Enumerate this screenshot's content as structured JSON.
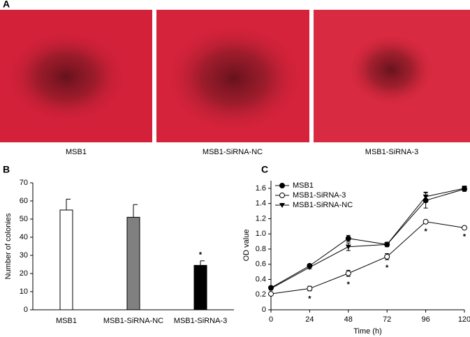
{
  "figure": {
    "panel_labels": [
      "A",
      "B",
      "C"
    ],
    "images": [
      {
        "caption": "MSB1"
      },
      {
        "caption": "MSB1-SiRNA-NC"
      },
      {
        "caption": "MSB1-SiRNA-3"
      }
    ]
  },
  "chart_data": [
    {
      "type": "bar",
      "y_label": "Number of colonies",
      "categories": [
        "MSB1",
        "MSB1-SiRNA-NC",
        "MSB1-SiRNA-3"
      ],
      "values": [
        55,
        51,
        24.5
      ],
      "errors": [
        6,
        7,
        2.5
      ],
      "colors": [
        "#ffffff",
        "#808080",
        "#000000"
      ],
      "ylim": [
        0,
        70
      ],
      "yticks": [
        0,
        10,
        20,
        30,
        40,
        50,
        60,
        70
      ],
      "annotations": [
        {
          "text": "*",
          "x": 2
        }
      ]
    },
    {
      "type": "line",
      "x_label": "Time (h)",
      "y_label": "OD value",
      "x": [
        0,
        24,
        48,
        72,
        96,
        120
      ],
      "xlim": [
        0,
        120
      ],
      "xticks": [
        0,
        24,
        48,
        72,
        96,
        120
      ],
      "ylim": [
        0,
        1.7
      ],
      "yticks": [
        0,
        0.2,
        0.4,
        0.6,
        0.8,
        {
          "value": 1,
          "label": "1.0"
        },
        1.2,
        1.4,
        1.6
      ],
      "legend": "top-left",
      "series": [
        {
          "name": "MSB1",
          "color": "#000000",
          "marker": "filled-circle",
          "values": [
            0.29,
            0.58,
            0.94,
            0.86,
            1.44,
            1.59
          ],
          "errors": [
            0.02,
            0.02,
            0.04,
            0.03,
            0.1,
            0.03
          ]
        },
        {
          "name": "MSB1-SiRNA-3",
          "color": "#000000",
          "marker": "open-circle",
          "values": [
            0.21,
            0.28,
            0.48,
            0.7,
            1.16,
            1.08
          ],
          "errors": [
            0.02,
            0.03,
            0.04,
            0.04,
            0.02,
            0.01
          ]
        },
        {
          "name": "MSB1-SiRNA-NC",
          "color": "#000000",
          "marker": "triangle-down",
          "values": [
            0.28,
            0.56,
            0.83,
            0.86,
            1.49,
            1.6
          ],
          "errors": [
            0.02,
            0.02,
            0.05,
            0.02,
            0.06,
            0.03
          ]
        }
      ],
      "annotations": [
        {
          "text": "*",
          "x": 24
        },
        {
          "text": "*",
          "x": 48
        },
        {
          "text": "*",
          "x": 72
        },
        {
          "text": "*",
          "x": 96
        },
        {
          "text": "*",
          "x": 120
        }
      ]
    }
  ]
}
